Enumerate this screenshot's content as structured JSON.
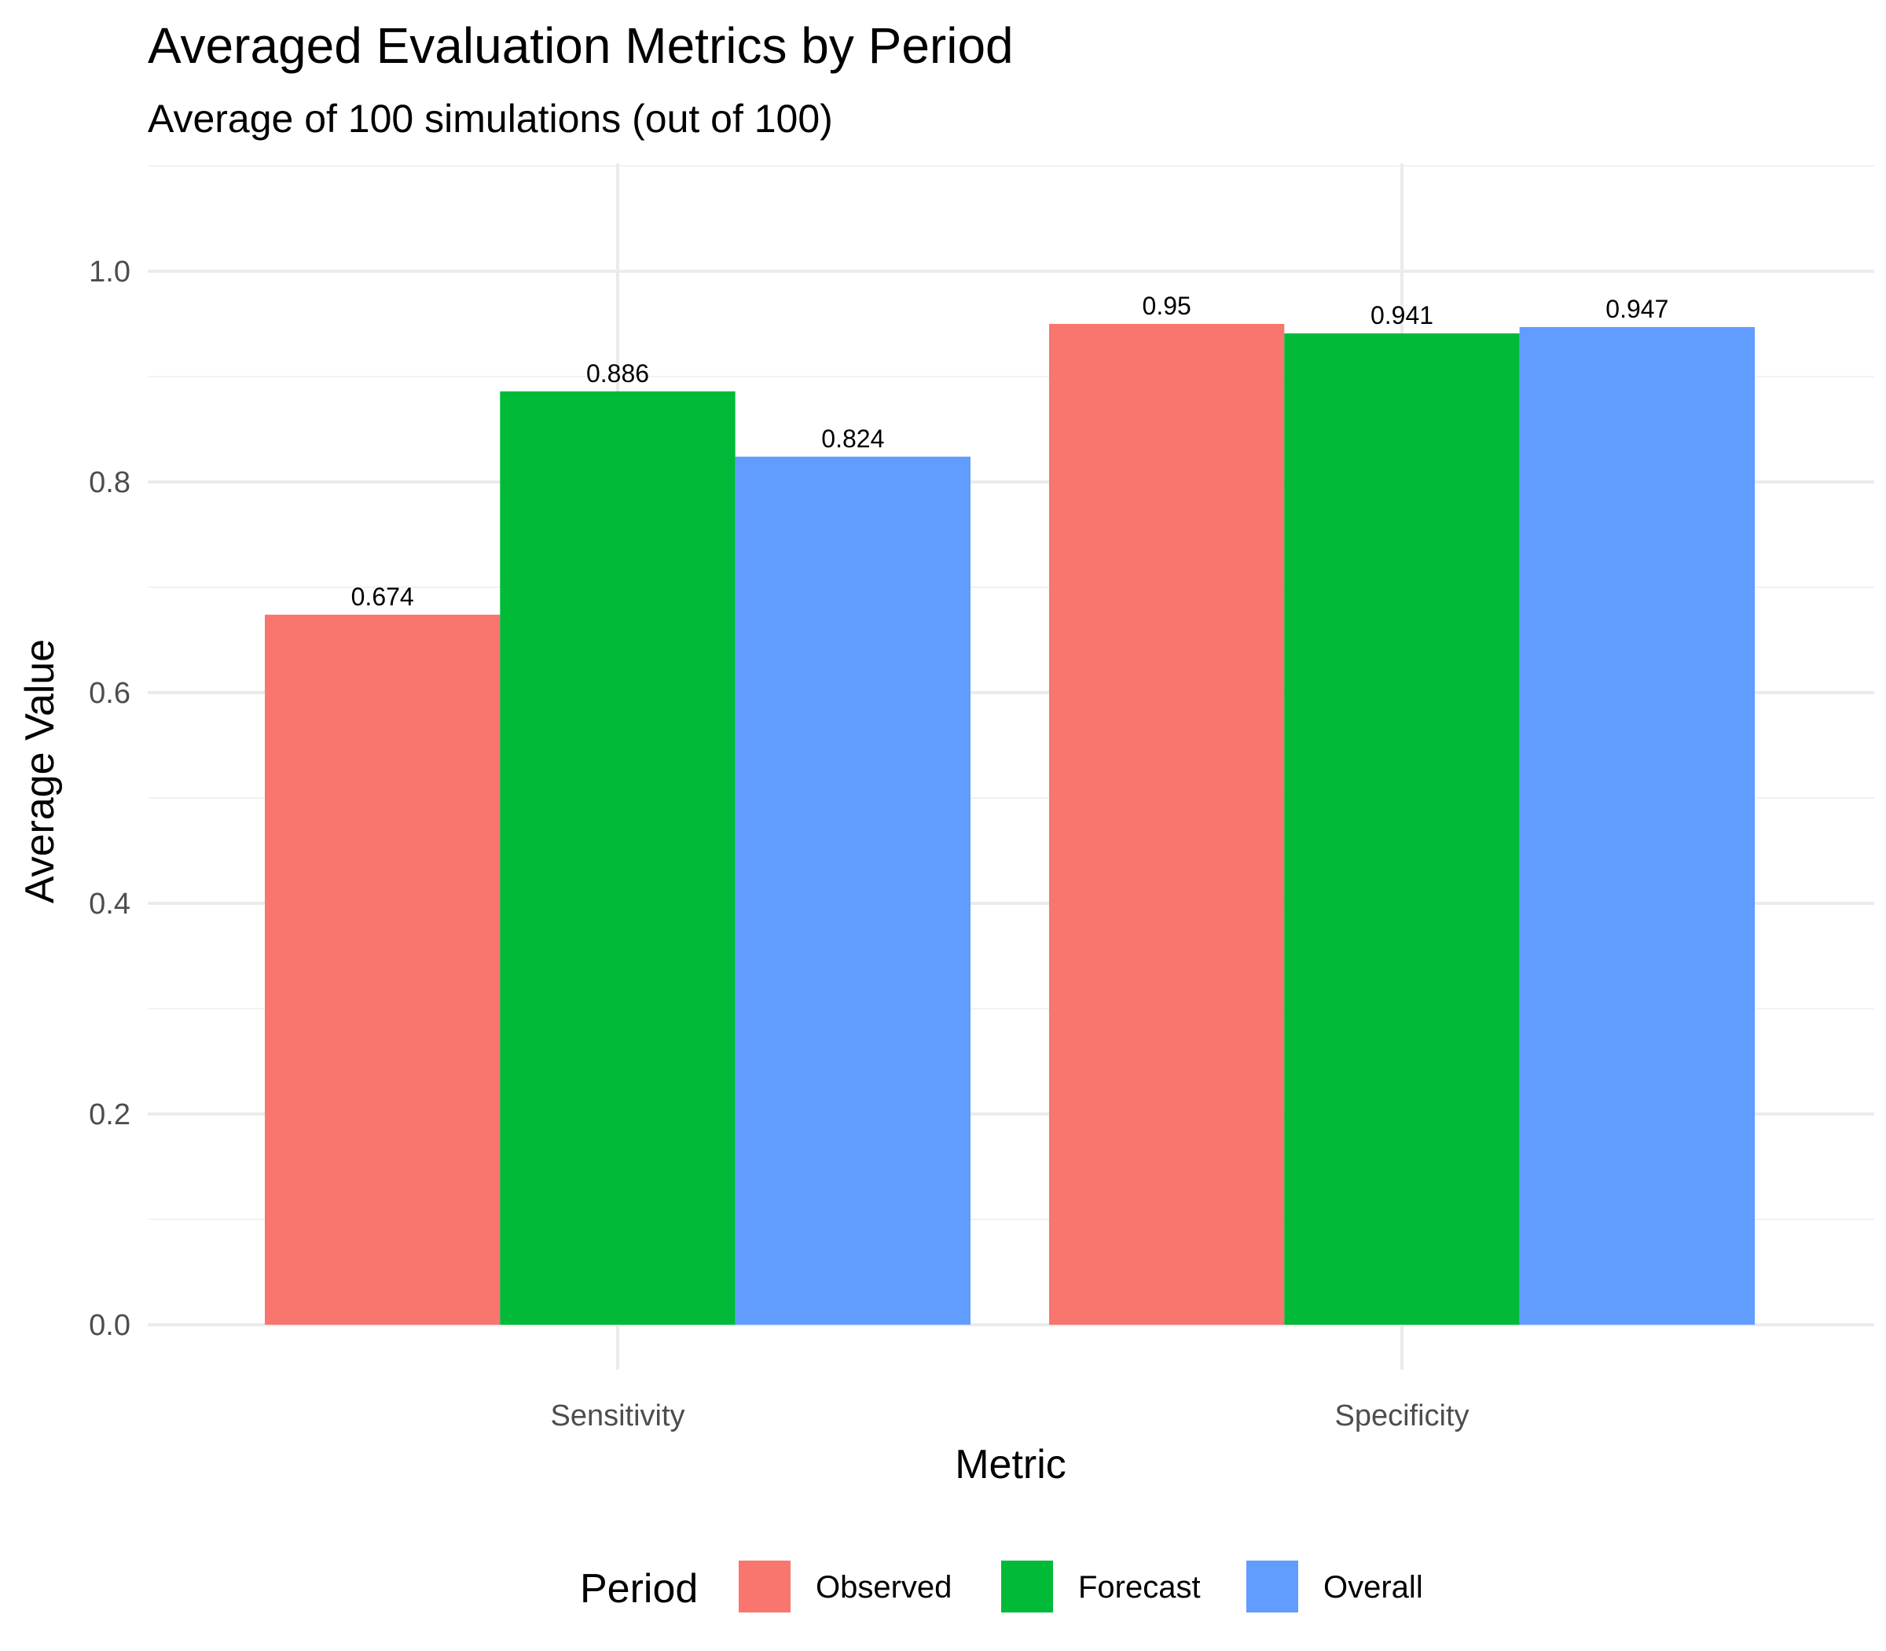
{
  "chart_data": {
    "type": "bar",
    "title": "Averaged Evaluation Metrics by Period",
    "subtitle": "Average of 100 simulations (out of 100)",
    "xlabel": "Metric",
    "ylabel": "Average Value",
    "categories": [
      "Sensitivity",
      "Specificity"
    ],
    "series": [
      {
        "name": "Observed",
        "color": "#F8766D",
        "values": [
          0.674,
          0.95
        ],
        "labels": [
          "0.674",
          "0.95"
        ]
      },
      {
        "name": "Forecast",
        "color": "#00BA38",
        "values": [
          0.886,
          0.941
        ],
        "labels": [
          "0.886",
          "0.941"
        ]
      },
      {
        "name": "Overall",
        "color": "#619CFF",
        "values": [
          0.824,
          0.947
        ],
        "labels": [
          "0.824",
          "0.947"
        ]
      }
    ],
    "ylim": [
      0,
      1.1
    ],
    "yticks": [
      0.0,
      0.2,
      0.4,
      0.6,
      0.8,
      1.0
    ],
    "ytick_labels": [
      "0.0",
      "0.2",
      "0.4",
      "0.6",
      "0.8",
      "1.0"
    ],
    "grid": true,
    "legend": {
      "title": "Period",
      "position": "bottom"
    }
  }
}
